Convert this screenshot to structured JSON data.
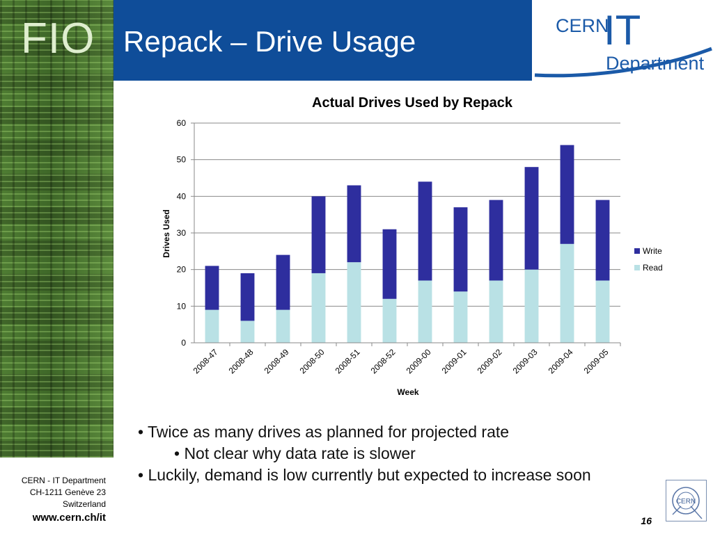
{
  "header": {
    "logo_text": "FIO",
    "title": "Repack – Drive Usage",
    "cern_text": "CERN",
    "it_text": "IT",
    "department_text": "Department"
  },
  "chart_data": {
    "type": "bar",
    "stacked": true,
    "title": "Actual Drives Used by Repack",
    "xlabel": "Week",
    "ylabel": "Drives Used",
    "ylim": [
      0,
      60
    ],
    "yticks": [
      "0",
      "10",
      "20",
      "30",
      "40",
      "50",
      "60"
    ],
    "grid": true,
    "legend_position": "right",
    "categories": [
      "2008-47",
      "2008-48",
      "2008-49",
      "2008-50",
      "2008-51",
      "2008-52",
      "2009-00",
      "2009-01",
      "2009-02",
      "2009-03",
      "2009-04",
      "2009-05"
    ],
    "series": [
      {
        "name": "Read",
        "color": "#b9e1e5",
        "values": [
          9,
          6,
          9,
          19,
          22,
          12,
          17,
          14,
          17,
          20,
          27,
          17
        ]
      },
      {
        "name": "Write",
        "color": "#2e2e9e",
        "values": [
          12,
          13,
          15,
          21,
          21,
          19,
          27,
          23,
          22,
          28,
          27,
          22
        ]
      }
    ]
  },
  "bullets": {
    "b1": "• Twice as many drives as planned for projected rate",
    "b2": "• Not clear why data rate is slower",
    "b3": "• Luckily, demand is low currently but expected to increase soon"
  },
  "footer": {
    "line1": "CERN - IT Department",
    "line2": "CH-1211 Genève 23",
    "line3": "Switzerland",
    "website": "www.cern.ch/it",
    "page_number": "16",
    "mark_text": "CERN"
  }
}
